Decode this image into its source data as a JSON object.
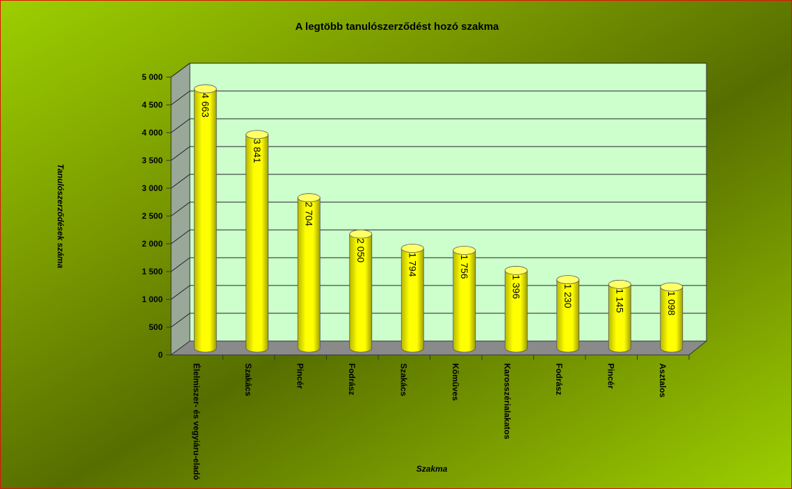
{
  "chart_data": {
    "type": "bar",
    "title": "A  legtöbb tanulószerződést hozó szakma",
    "x_label": "Szakma",
    "y_label": "Tanulószerződések száma",
    "categories": [
      "Élelmiszer- és vegyiáru-eladó",
      "Szakács",
      "Pincér",
      "Fodrász",
      "Szakács",
      "Kőműves",
      "Karosszérialakatos",
      "Fodrász",
      "Pincér",
      "Asztalos"
    ],
    "values": [
      4663,
      3841,
      2704,
      2050,
      1794,
      1756,
      1396,
      1230,
      1145,
      1098
    ],
    "value_labels": [
      "4 663",
      "3 841",
      "2 704",
      "2 050",
      "1 794",
      "1 756",
      "1 396",
      "1 230",
      "1 145",
      "1 098"
    ],
    "color": "#ffff00",
    "ylim": [
      0,
      5000
    ],
    "yticks": [
      0,
      500,
      {
        "value": 1000,
        "label": "1 000"
      },
      {
        "value": 1500,
        "label": "1 500"
      },
      {
        "value": 2000,
        "label": "2 000"
      },
      {
        "value": 2500,
        "label": "2 500"
      },
      {
        "value": 3000,
        "label": "3 000"
      },
      {
        "value": 3500,
        "label": "3 500"
      },
      {
        "value": 4000,
        "label": "4 000"
      },
      {
        "value": 4500,
        "label": "4 500"
      },
      {
        "value": 5000,
        "label": "5 000"
      }
    ],
    "grid": true
  }
}
